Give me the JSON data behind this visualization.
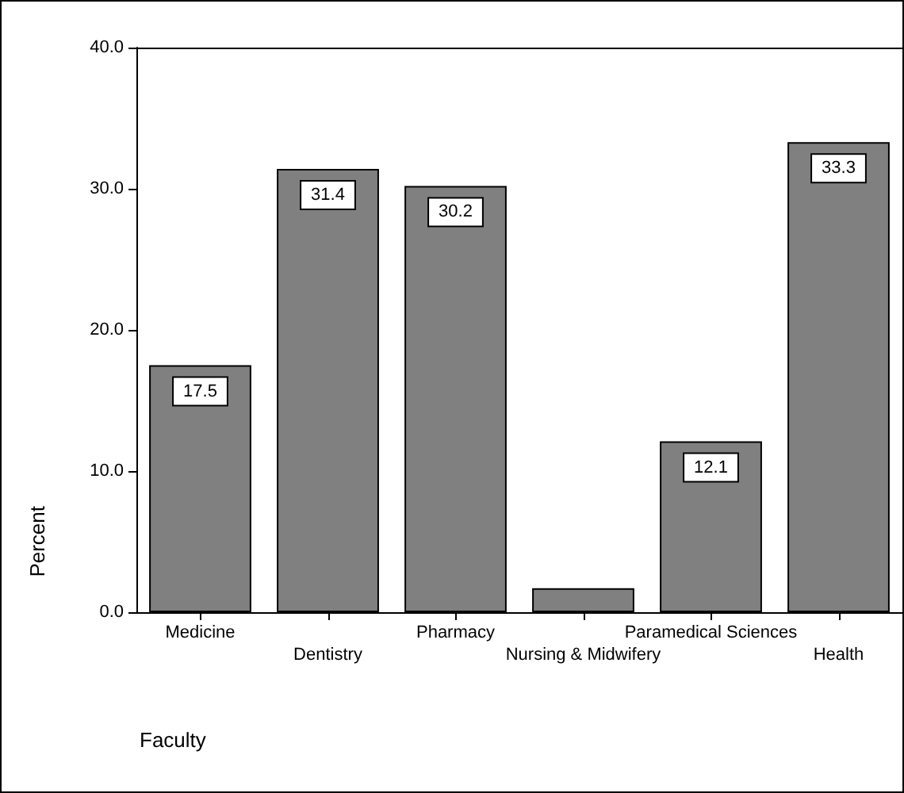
{
  "chart_data": {
    "type": "bar",
    "xlabel": "Faculty",
    "ylabel": "Percent",
    "categories": [
      "Medicine",
      "Dentistry",
      "Pharmacy",
      "Nursing & Midwifery",
      "Paramedical Sciences",
      "Health"
    ],
    "values": [
      17.5,
      31.4,
      30.2,
      1.7,
      12.1,
      33.3
    ],
    "value_labels": [
      "17.5",
      "31.4",
      "30.2",
      null,
      "12.1",
      "33.3"
    ],
    "color": "#808080",
    "ylim": [
      0,
      40
    ],
    "yticks": [
      {
        "value": 0,
        "label": "0.0"
      },
      {
        "value": 10,
        "label": "10.0"
      },
      {
        "value": 20,
        "label": "20.0"
      },
      {
        "value": 30,
        "label": "30.0"
      },
      {
        "value": 40,
        "label": "40.0"
      }
    ],
    "grid": false
  }
}
